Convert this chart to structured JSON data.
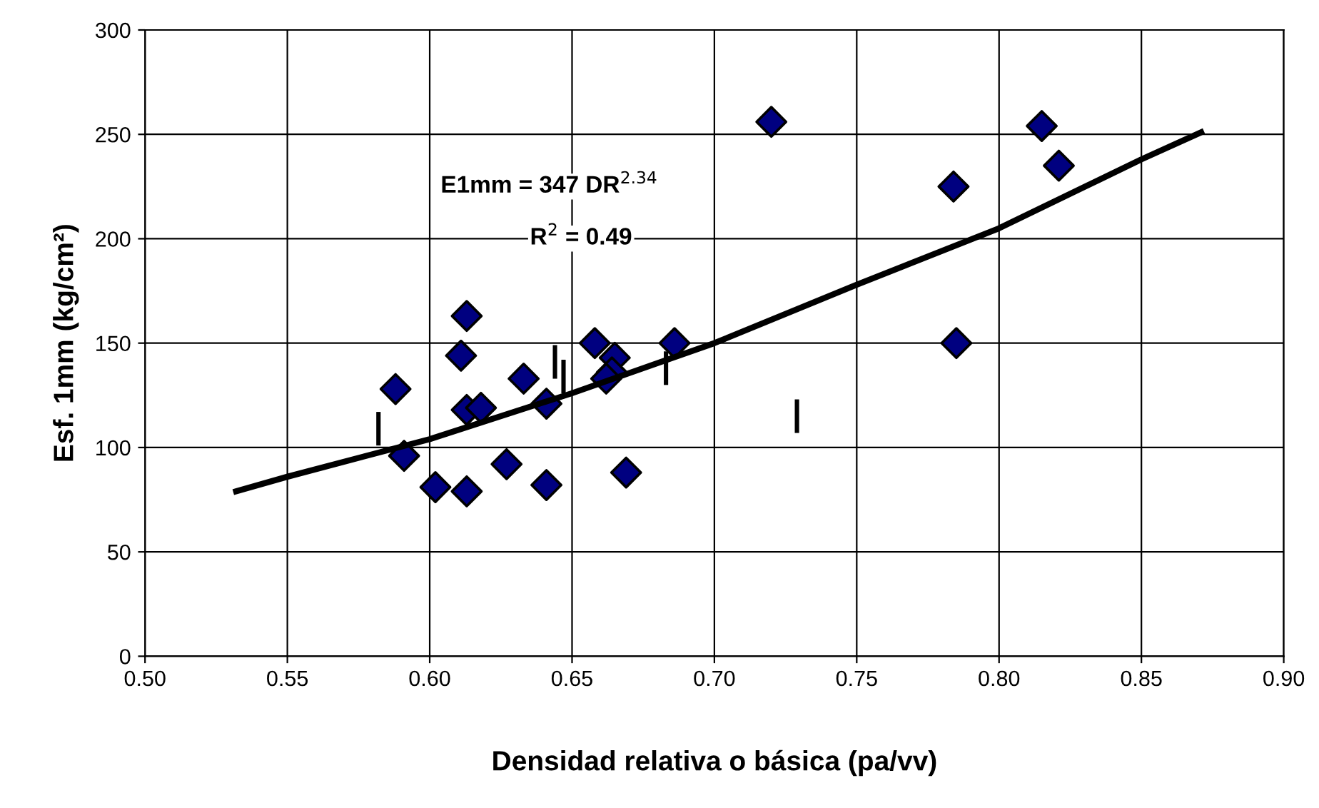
{
  "chart_data": {
    "type": "scatter",
    "xlabel": "Densidad relativa o básica (pa/vv)",
    "ylabel": "Esf. 1mm (kg/cm²)",
    "annotations": [
      "E1mm = 347 DR$^{2.34}$",
      "R$^{2}$ = 0.49"
    ],
    "xlim": [
      0.5,
      0.9
    ],
    "xticks": [
      {
        "value": 0.5,
        "label": "0.50"
      },
      {
        "value": 0.55,
        "label": "0.55"
      },
      {
        "value": 0.6,
        "label": "0.60"
      },
      {
        "value": 0.65,
        "label": "0.65"
      },
      {
        "value": 0.7,
        "label": "0.70"
      },
      {
        "value": 0.75,
        "label": "0.75"
      },
      {
        "value": 0.8,
        "label": "0.80"
      },
      {
        "value": 0.85,
        "label": "0.85"
      },
      {
        "value": 0.9,
        "label": "0.90"
      }
    ],
    "ylim": [
      0,
      300
    ],
    "yticks": [
      0,
      50,
      100,
      150,
      200,
      250,
      300
    ],
    "grid": true,
    "marker": "diamond",
    "series": [
      {
        "color": "#000080",
        "x": [
          0.588,
          0.591,
          0.613,
          0.611,
          0.613,
          0.618,
          0.602,
          0.613,
          0.627,
          0.633,
          0.641,
          0.641,
          0.658,
          0.665,
          0.664,
          0.662,
          0.669,
          0.686,
          0.72,
          0.784,
          0.785,
          0.815,
          0.821
        ],
        "values": [
          128,
          96,
          163,
          144,
          118,
          119,
          81,
          79,
          92,
          133,
          121,
          82,
          150,
          143,
          136,
          133,
          88,
          150,
          256,
          225,
          150,
          254,
          235
        ]
      },
      {
        "type": "line",
        "color": "#000000",
        "marker": "none",
        "line_style": "solid",
        "x": [
          0.582,
          0.582
        ],
        "values": [
          102,
          116
        ]
      },
      {
        "type": "line",
        "color": "#000000",
        "marker": "none",
        "line_style": "solid",
        "x": [
          0.644,
          0.644
        ],
        "values": [
          134,
          148
        ]
      },
      {
        "type": "line",
        "color": "#000000",
        "marker": "none",
        "line_style": "solid",
        "x": [
          0.647,
          0.647
        ],
        "values": [
          127,
          141
        ]
      },
      {
        "type": "line",
        "color": "#000000",
        "marker": "none",
        "line_style": "solid",
        "x": [
          0.683,
          0.683
        ],
        "values": [
          131,
          145
        ]
      },
      {
        "type": "line",
        "color": "#000000",
        "marker": "none",
        "line_style": "solid",
        "x": [
          0.729,
          0.729
        ],
        "values": [
          108,
          122
        ]
      },
      {
        "type": "line",
        "color": "#000000",
        "marker": "none",
        "line_style": "solid",
        "x": [
          0.532,
          0.55,
          0.6,
          0.65,
          0.7,
          0.75,
          0.8,
          0.85,
          0.871
        ],
        "values": [
          79,
          86,
          104,
          126,
          150,
          178,
          205,
          238,
          251
        ]
      }
    ]
  }
}
